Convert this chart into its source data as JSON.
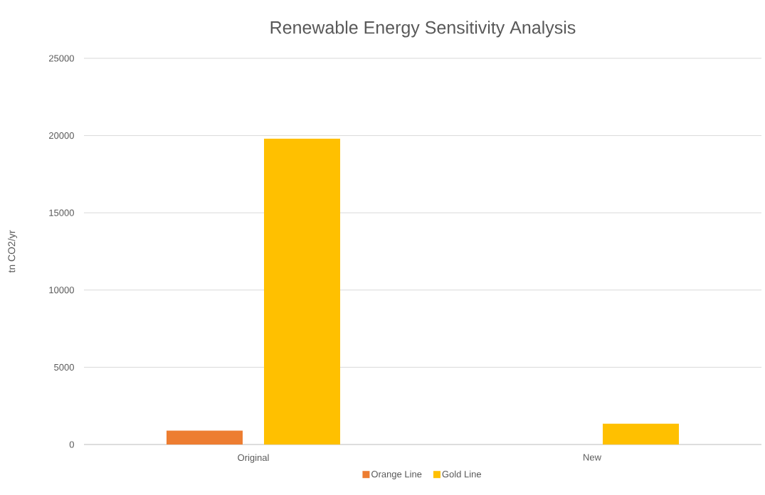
{
  "chart_data": {
    "type": "bar",
    "title": "Renewable Energy Sensitivity Analysis",
    "ylabel": "tn CO2/yr",
    "categories": [
      "Original",
      "New"
    ],
    "series": [
      {
        "name": "Orange Line",
        "color": "#ed7d31",
        "values": [
          900,
          null
        ]
      },
      {
        "name": "Gold Line",
        "color": "#ffc000",
        "values": [
          19800,
          1350
        ]
      }
    ],
    "ylim": [
      0,
      25000
    ],
    "yticks": [
      0,
      5000,
      10000,
      15000,
      20000,
      25000
    ],
    "grid": "y",
    "legend": "bottom"
  }
}
